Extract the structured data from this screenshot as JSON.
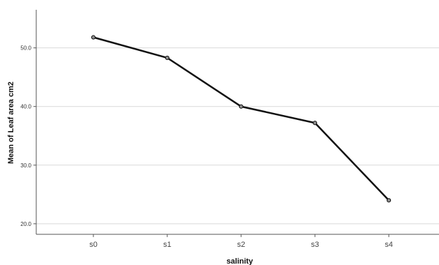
{
  "chart_data": {
    "type": "line",
    "title": "",
    "xlabel": "salinity",
    "ylabel": "Mean of Leaf area cm2",
    "categories": [
      "s0",
      "s1",
      "s2",
      "s3",
      "s4"
    ],
    "series": [
      {
        "values": [
          51.8,
          48.3,
          40.0,
          37.2,
          24.0
        ]
      }
    ],
    "yticks": [
      "20.0",
      "30.0",
      "40.0",
      "50.0"
    ],
    "ytick_values": [
      20,
      30,
      40,
      50
    ],
    "ylim": [
      18.2,
      56.5
    ],
    "grid": "horizontal",
    "legend": "none"
  },
  "colors": {
    "line": "#111111",
    "marker_fill": "#8c8c8c",
    "grid": "#d9d9d9",
    "axis": "#555555"
  }
}
